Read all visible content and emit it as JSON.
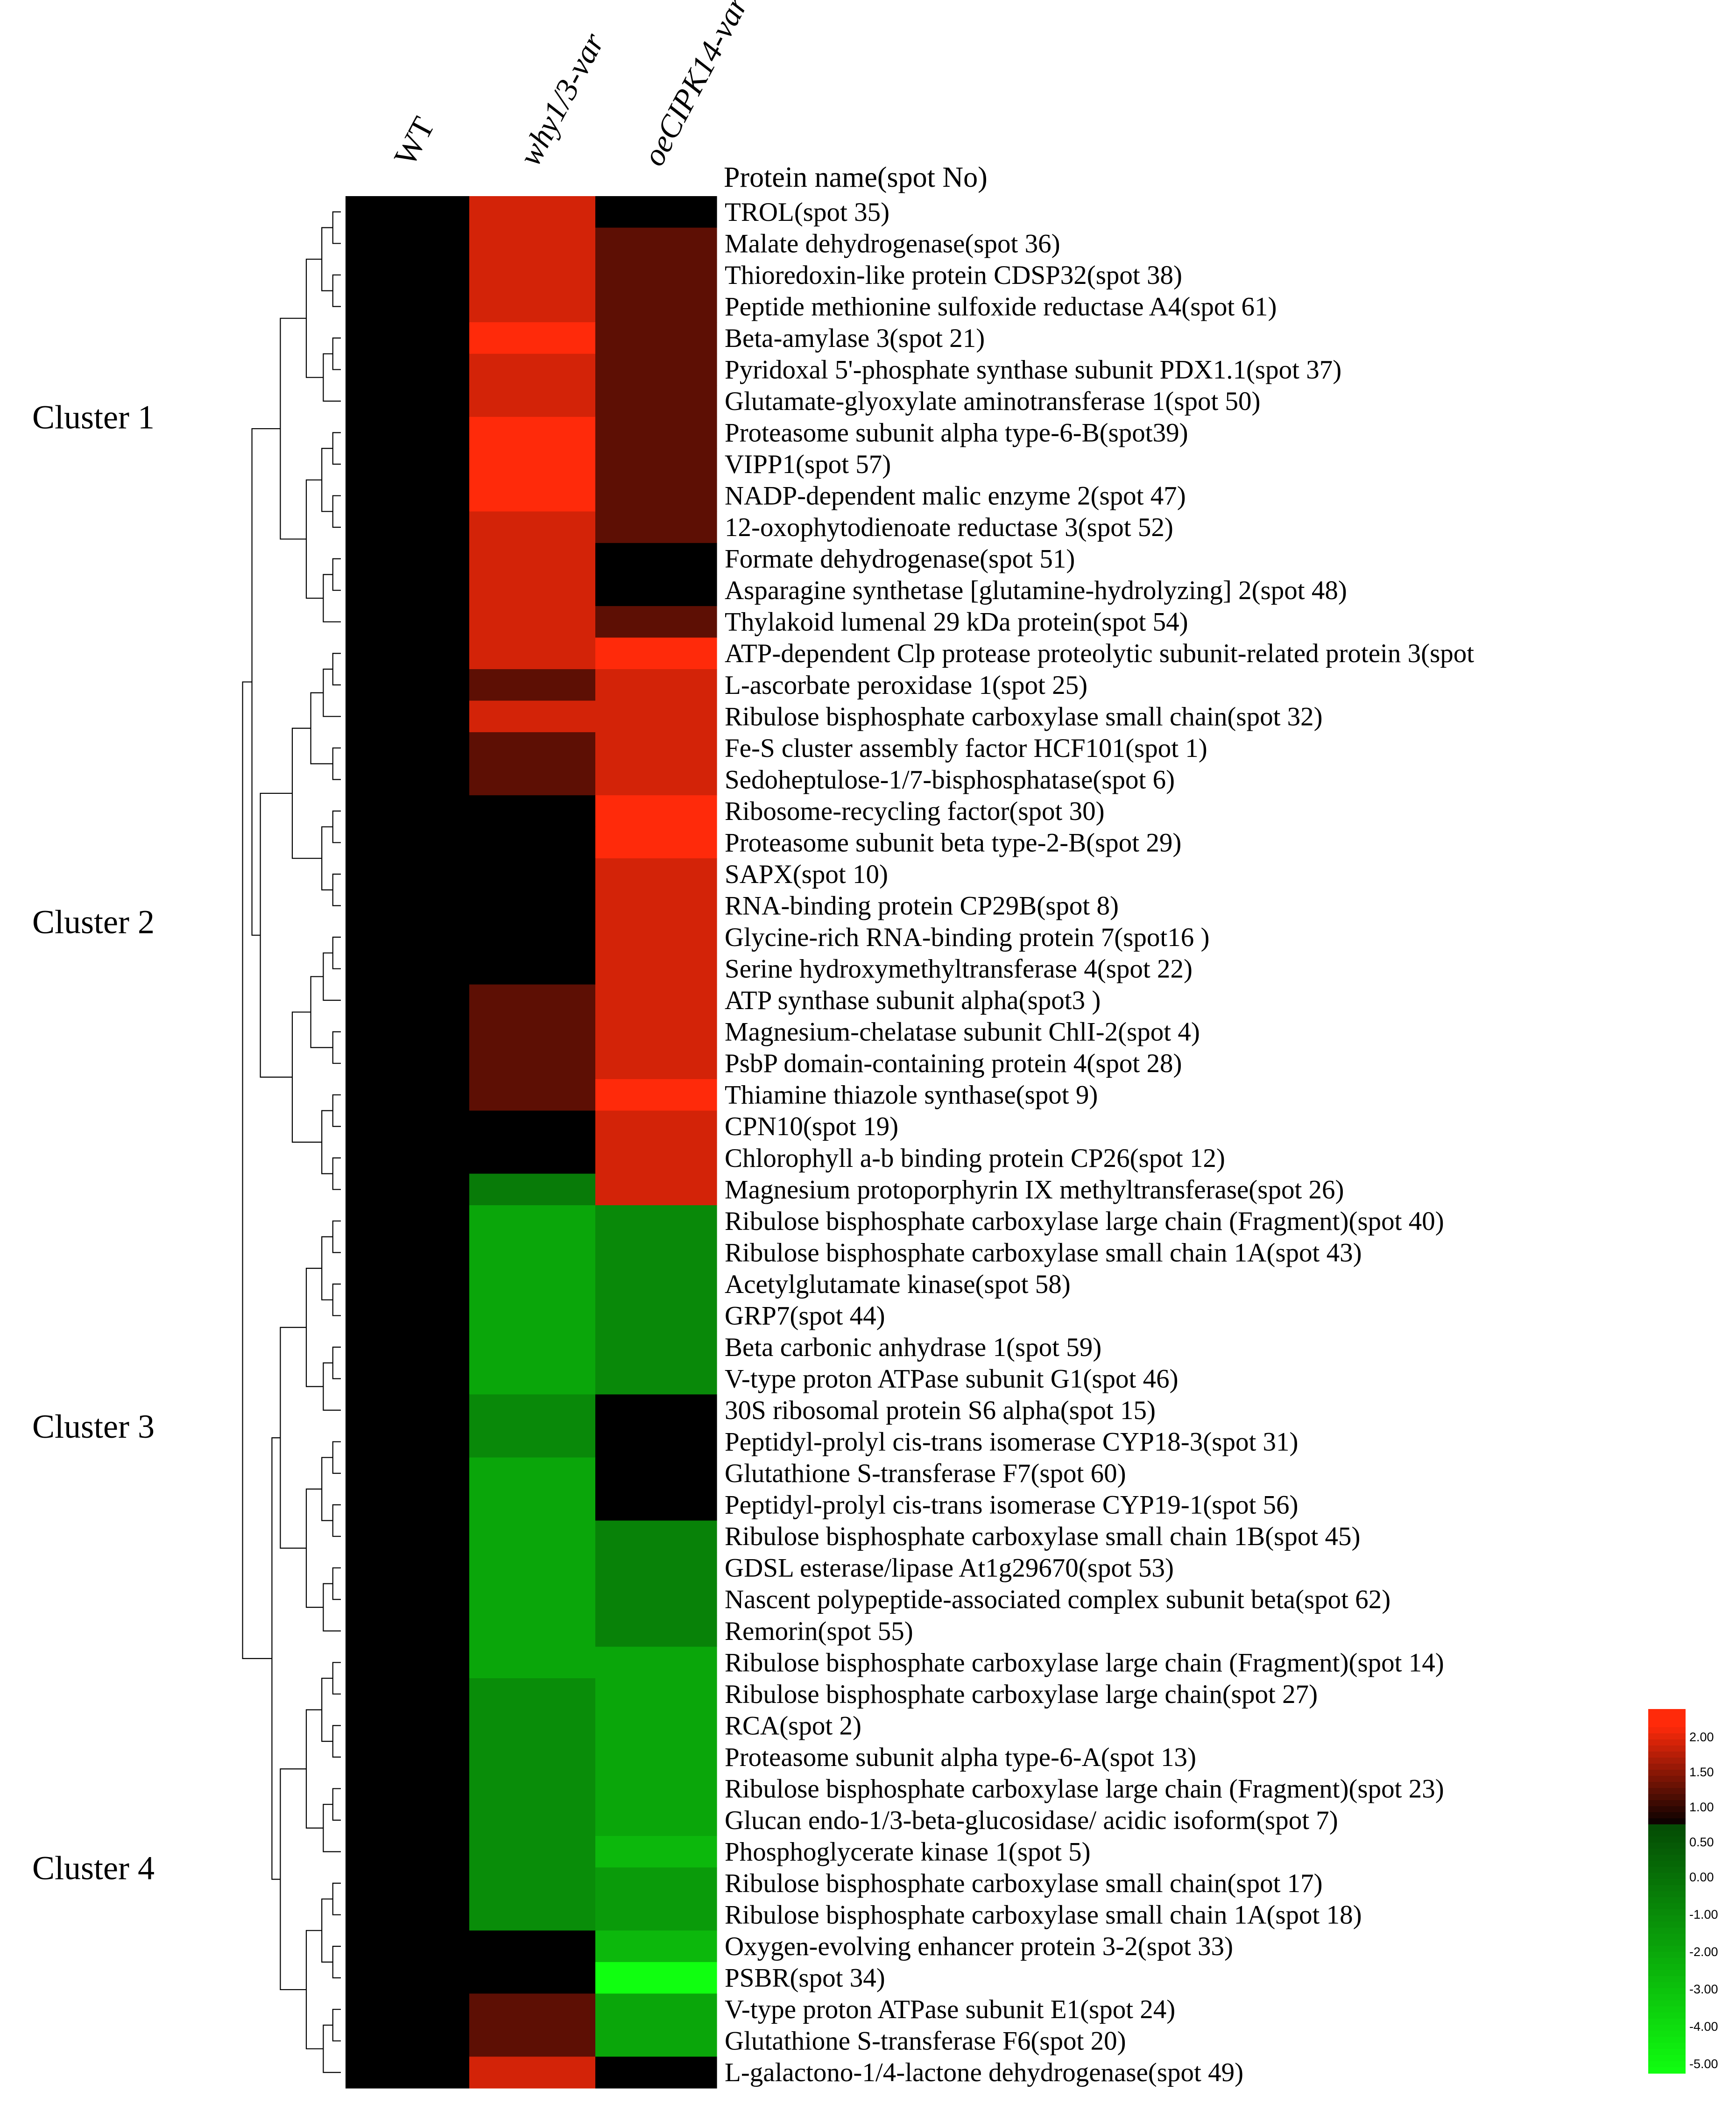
{
  "chart_data": {
    "type": "heatmap",
    "columns": [
      "WT",
      "why1/3-var",
      "oeCIPK14-var"
    ],
    "row_header": "Protein name(spot No)",
    "rows": [
      {
        "label": "TROL(spot 35)",
        "values": [
          0,
          1.7,
          0
        ]
      },
      {
        "label": "Malate dehydrogenase(spot 36)",
        "values": [
          0,
          1.7,
          0.75
        ]
      },
      {
        "label": "Thioredoxin-like protein CDSP32(spot 38)",
        "values": [
          0,
          1.7,
          0.75
        ]
      },
      {
        "label": "Peptide methionine sulfoxide reductase A4(spot 61)",
        "values": [
          0,
          1.7,
          0.75
        ]
      },
      {
        "label": "Beta-amylase 3(spot 21)",
        "values": [
          0,
          2.05,
          0.75
        ]
      },
      {
        "label": "Pyridoxal 5'-phosphate synthase subunit PDX1.1(spot 37)",
        "values": [
          0,
          1.7,
          0.75
        ]
      },
      {
        "label": "Glutamate-glyoxylate aminotransferase 1(spot 50)",
        "values": [
          0,
          1.7,
          0.75
        ]
      },
      {
        "label": "Proteasome subunit alpha type-6-B(spot39)",
        "values": [
          0,
          2.05,
          0.75
        ]
      },
      {
        "label": "VIPP1(spot 57)",
        "values": [
          0,
          2.05,
          0.75
        ]
      },
      {
        "label": "NADP-dependent malic enzyme 2(spot 47)",
        "values": [
          0,
          2.05,
          0.75
        ]
      },
      {
        "label": "12-oxophytodienoate reductase 3(spot 52)",
        "values": [
          0,
          1.7,
          0.75
        ]
      },
      {
        "label": "Formate dehydrogenase(spot 51)",
        "values": [
          0,
          1.7,
          0
        ]
      },
      {
        "label": "Asparagine synthetase [glutamine-hydrolyzing] 2(spot 48)",
        "values": [
          0,
          1.7,
          0
        ]
      },
      {
        "label": "Thylakoid lumenal 29 kDa protein(spot 54)",
        "values": [
          0,
          1.7,
          0.75
        ]
      },
      {
        "label": "ATP-dependent Clp protease proteolytic subunit-related protein 3(spot",
        "values": [
          0,
          1.7,
          2.05
        ]
      },
      {
        "label": "L-ascorbate peroxidase 1(spot 25)",
        "values": [
          0,
          0.75,
          1.7
        ]
      },
      {
        "label": "Ribulose bisphosphate carboxylase small chain(spot 32)",
        "values": [
          0,
          1.7,
          1.7
        ]
      },
      {
        "label": "Fe-S cluster assembly factor HCF101(spot 1)",
        "values": [
          0,
          0.75,
          1.7
        ]
      },
      {
        "label": "Sedoheptulose-1/7-bisphosphatase(spot 6)",
        "values": [
          0,
          0.75,
          1.7
        ]
      },
      {
        "label": "Ribosome-recycling factor(spot 30)",
        "values": [
          0,
          0,
          2.05
        ]
      },
      {
        "label": "Proteasome subunit beta type-2-B(spot 29)",
        "values": [
          0,
          0,
          2.05
        ]
      },
      {
        "label": "SAPX(spot 10)",
        "values": [
          0,
          0,
          1.7
        ]
      },
      {
        "label": "RNA-binding protein CP29B(spot 8)",
        "values": [
          0,
          0,
          1.7
        ]
      },
      {
        "label": "Glycine-rich RNA-binding protein 7(spot16 )",
        "values": [
          0,
          0,
          1.7
        ]
      },
      {
        "label": "Serine hydroxymethyltransferase 4(spot 22)",
        "values": [
          0,
          0,
          1.7
        ]
      },
      {
        "label": "ATP synthase subunit alpha(spot3 )",
        "values": [
          0,
          0.75,
          1.7
        ]
      },
      {
        "label": "Magnesium-chelatase subunit ChlI-2(spot 4)",
        "values": [
          0,
          0.75,
          1.7
        ]
      },
      {
        "label": "PsbP domain-containing protein 4(spot 28)",
        "values": [
          0,
          0.75,
          1.7
        ]
      },
      {
        "label": "Thiamine thiazole synthase(spot 9)",
        "values": [
          0,
          0.75,
          2.05
        ]
      },
      {
        "label": "CPN10(spot 19)",
        "values": [
          0,
          0,
          1.7
        ]
      },
      {
        "label": "Chlorophyll a-b binding protein CP26(spot 12)",
        "values": [
          0,
          0,
          1.7
        ]
      },
      {
        "label": "Magnesium protoporphyrin IX methyltransferase(spot 26)",
        "values": [
          0,
          -1.3,
          1.7
        ]
      },
      {
        "label": "Ribulose bisphosphate carboxylase large chain (Fragment)(spot 40)",
        "values": [
          0,
          -2.5,
          -1.7
        ]
      },
      {
        "label": "Ribulose bisphosphate carboxylase small chain 1A(spot 43)",
        "values": [
          0,
          -2.5,
          -1.7
        ]
      },
      {
        "label": "Acetylglutamate kinase(spot 58)",
        "values": [
          0,
          -2.5,
          -1.7
        ]
      },
      {
        "label": "GRP7(spot 44)",
        "values": [
          0,
          -2.5,
          -1.7
        ]
      },
      {
        "label": "Beta carbonic anhydrase 1(spot 59)",
        "values": [
          0,
          -2.5,
          -1.7
        ]
      },
      {
        "label": "V-type proton ATPase subunit G1(spot 46)",
        "values": [
          0,
          -2.5,
          -1.7
        ]
      },
      {
        "label": "30S ribosomal protein S6 alpha(spot 15)",
        "values": [
          0,
          -1.7,
          0
        ]
      },
      {
        "label": "Peptidyl-prolyl cis-trans isomerase CYP18-3(spot 31)",
        "values": [
          0,
          -1.7,
          0
        ]
      },
      {
        "label": "Glutathione S-transferase F7(spot 60)",
        "values": [
          0,
          -2.5,
          0
        ]
      },
      {
        "label": "Peptidyl-prolyl cis-trans isomerase CYP19-1(spot 56)",
        "values": [
          0,
          -2.5,
          0
        ]
      },
      {
        "label": "Ribulose bisphosphate carboxylase small chain 1B(spot 45)",
        "values": [
          0,
          -2.5,
          -1.5
        ]
      },
      {
        "label": "GDSL esterase/lipase At1g29670(spot 53)",
        "values": [
          0,
          -2.5,
          -1.5
        ]
      },
      {
        "label": "Nascent polypeptide-associated complex subunit beta(spot 62)",
        "values": [
          0,
          -2.5,
          -1.5
        ]
      },
      {
        "label": "Remorin(spot 55)",
        "values": [
          0,
          -2.5,
          -1.5
        ]
      },
      {
        "label": "Ribulose bisphosphate carboxylase large chain (Fragment)(spot 14)",
        "values": [
          0,
          -2.5,
          -2.5
        ]
      },
      {
        "label": "Ribulose bisphosphate carboxylase large chain(spot 27)",
        "values": [
          0,
          -1.8,
          -2.5
        ]
      },
      {
        "label": "RCA(spot 2)",
        "values": [
          0,
          -1.8,
          -2.5
        ]
      },
      {
        "label": "Proteasome subunit alpha type-6-A(spot 13)",
        "values": [
          0,
          -1.8,
          -2.5
        ]
      },
      {
        "label": "Ribulose bisphosphate carboxylase large chain (Fragment)(spot 23)",
        "values": [
          0,
          -1.8,
          -2.5
        ]
      },
      {
        "label": "Glucan endo-1/3-beta-glucosidase/ acidic isoform(spot 7)",
        "values": [
          0,
          -1.8,
          -2.5
        ]
      },
      {
        "label": "Phosphoglycerate kinase 1(spot 5)",
        "values": [
          0,
          -1.8,
          -3.0
        ]
      },
      {
        "label": "Ribulose bisphosphate carboxylase small chain(spot 17)",
        "values": [
          0,
          -1.8,
          -2.2
        ]
      },
      {
        "label": "Ribulose bisphosphate carboxylase small chain 1A(spot 18)",
        "values": [
          0,
          -1.8,
          -2.2
        ]
      },
      {
        "label": "Oxygen-evolving enhancer protein 3-2(spot 33)",
        "values": [
          0,
          0,
          -3.0
        ]
      },
      {
        "label": "PSBR(spot 34)",
        "values": [
          0,
          0,
          -5.0
        ]
      },
      {
        "label": "V-type proton ATPase subunit E1(spot 24)",
        "values": [
          0,
          0.75,
          -2.5
        ]
      },
      {
        "label": "Glutathione S-transferase F6(spot 20)",
        "values": [
          0,
          0.75,
          -2.5
        ]
      },
      {
        "label": "L-galactono-1/4-lactone dehydrogenase(spot 49)",
        "values": [
          0,
          1.7,
          0
        ]
      }
    ],
    "clusters": [
      {
        "label": "Cluster 1",
        "rows": [
          0,
          13
        ]
      },
      {
        "label": "Cluster 2",
        "rows": [
          14,
          31
        ]
      },
      {
        "label": "Cluster 3",
        "rows": [
          32,
          45
        ]
      },
      {
        "label": "Cluster 4",
        "rows": [
          46,
          59
        ]
      }
    ],
    "color_scale": {
      "ticks": [
        "2.00",
        "1.50",
        "1.00",
        "0.50",
        "0.00",
        "-1.00",
        "-2.00",
        "-3.00",
        "-4.00",
        "-5.00"
      ],
      "range": [
        -5,
        2.4
      ],
      "positive_color": "#ff2a0a",
      "zero_color": "#000000",
      "negative_color": "#10ff10"
    },
    "dendrogram": "hierarchical clustering tree drawn on the left"
  }
}
